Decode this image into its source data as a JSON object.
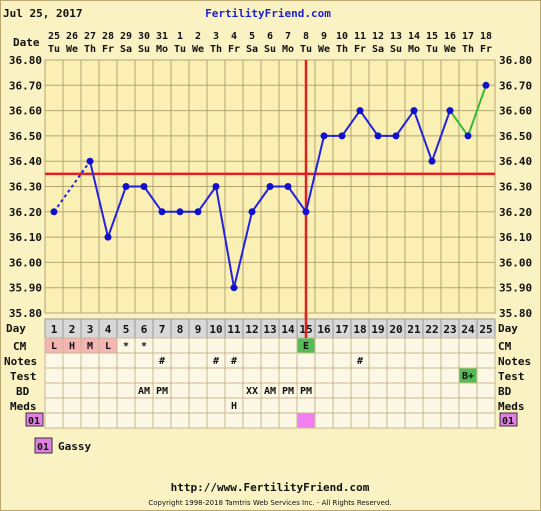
{
  "header": {
    "date": "Jul 25, 2017",
    "site": "FertilityFriend.com"
  },
  "footer": {
    "url": "http://www.FertilityFriend.com",
    "copyright": "Copyright 1998-2018 Tamtris Web Services Inc. - All Rights Reserved."
  },
  "row_labels": {
    "date": "Date",
    "day": "Day",
    "cm": "CM",
    "notes": "Notes",
    "test": "Test",
    "bd": "BD",
    "meds": "Meds"
  },
  "legend": {
    "code": "01",
    "text": "Gassy",
    "color": "#e080e0"
  },
  "colors": {
    "chart_bg": "#fbf0b4",
    "grid": "#b4a474",
    "temp_line": "#2222dd",
    "temp_point": "#1111cc",
    "projected_line": "#33bb33",
    "coverline": "#e02020",
    "ovulation_line": "#e02020",
    "cm_L": "#f5b5b5",
    "cm_H": "#f5b5b5",
    "cm_M": "#f5b5b5",
    "cm_E": "#55bb55",
    "test_pos": "#55bb55",
    "meds_marker": "#f080f0"
  },
  "chart_data": {
    "type": "line",
    "title": "",
    "xlabel": "Day",
    "ylabel": "",
    "ylim": [
      35.8,
      36.8
    ],
    "yticks": [
      "35.80",
      "35.90",
      "36.00",
      "36.10",
      "36.20",
      "36.30",
      "36.40",
      "36.50",
      "36.60",
      "36.70",
      "36.80"
    ],
    "grid": true,
    "dates": [
      "25",
      "26",
      "27",
      "28",
      "29",
      "30",
      "31",
      "1",
      "2",
      "3",
      "4",
      "5",
      "6",
      "7",
      "8",
      "9",
      "10",
      "11",
      "12",
      "13",
      "14",
      "15",
      "16",
      "17",
      "18"
    ],
    "weekdays": [
      "Tu",
      "We",
      "Th",
      "Fr",
      "Sa",
      "Su",
      "Mo",
      "Tu",
      "We",
      "Th",
      "Fr",
      "Sa",
      "Su",
      "Mo",
      "Tu",
      "We",
      "Th",
      "Fr",
      "Sa",
      "Su",
      "Mo",
      "Tu",
      "We",
      "Th",
      "Fr"
    ],
    "days": [
      1,
      2,
      3,
      4,
      5,
      6,
      7,
      8,
      9,
      10,
      11,
      12,
      13,
      14,
      15,
      16,
      17,
      18,
      19,
      20,
      21,
      22,
      23,
      24,
      25
    ],
    "series": [
      {
        "values": [
          36.2,
          null,
          36.4,
          36.1,
          36.3,
          36.3,
          36.2,
          36.2,
          36.2,
          36.3,
          35.9,
          36.2,
          36.3,
          36.3,
          36.2,
          36.5,
          36.5,
          36.6,
          36.5,
          36.5,
          36.6,
          36.4,
          36.6,
          36.5,
          36.7
        ]
      }
    ],
    "dotted_segment": [
      1,
      3
    ],
    "projected_segment": [
      23,
      24,
      25
    ],
    "coverline": 36.35,
    "ovulation_day": 15,
    "rows": {
      "cm": [
        "L",
        "H",
        "M",
        "L",
        "*",
        "*",
        "",
        "",
        "",
        "",
        "",
        "",
        "",
        "",
        "E",
        "",
        "",
        "",
        "",
        "",
        "",
        "",
        "",
        "",
        ""
      ],
      "notes": [
        "",
        "",
        "",
        "",
        "",
        "",
        "#",
        "",
        "",
        "#",
        "#",
        "",
        "",
        "",
        "",
        "",
        "",
        "#",
        "",
        "",
        "",
        "",
        "",
        "",
        ""
      ],
      "test": [
        "",
        "",
        "",
        "",
        "",
        "",
        "",
        "",
        "",
        "",
        "",
        "",
        "",
        "",
        "",
        "",
        "",
        "",
        "",
        "",
        "",
        "",
        "",
        "B+",
        ""
      ],
      "bd": [
        "",
        "",
        "",
        "",
        "",
        "AM",
        "PM",
        "",
        "",
        "",
        "",
        "XX",
        "AM",
        "PM",
        "PM",
        "",
        "",
        "",
        "",
        "",
        "",
        "",
        "",
        "",
        ""
      ],
      "meds": [
        "",
        "",
        "",
        "",
        "",
        "",
        "",
        "",
        "",
        "",
        "H",
        "",
        "",
        "",
        "",
        "",
        "",
        "",
        "",
        "",
        "",
        "",
        "",
        "",
        ""
      ]
    },
    "meds_marker_day": 15,
    "meds_code": "01"
  }
}
